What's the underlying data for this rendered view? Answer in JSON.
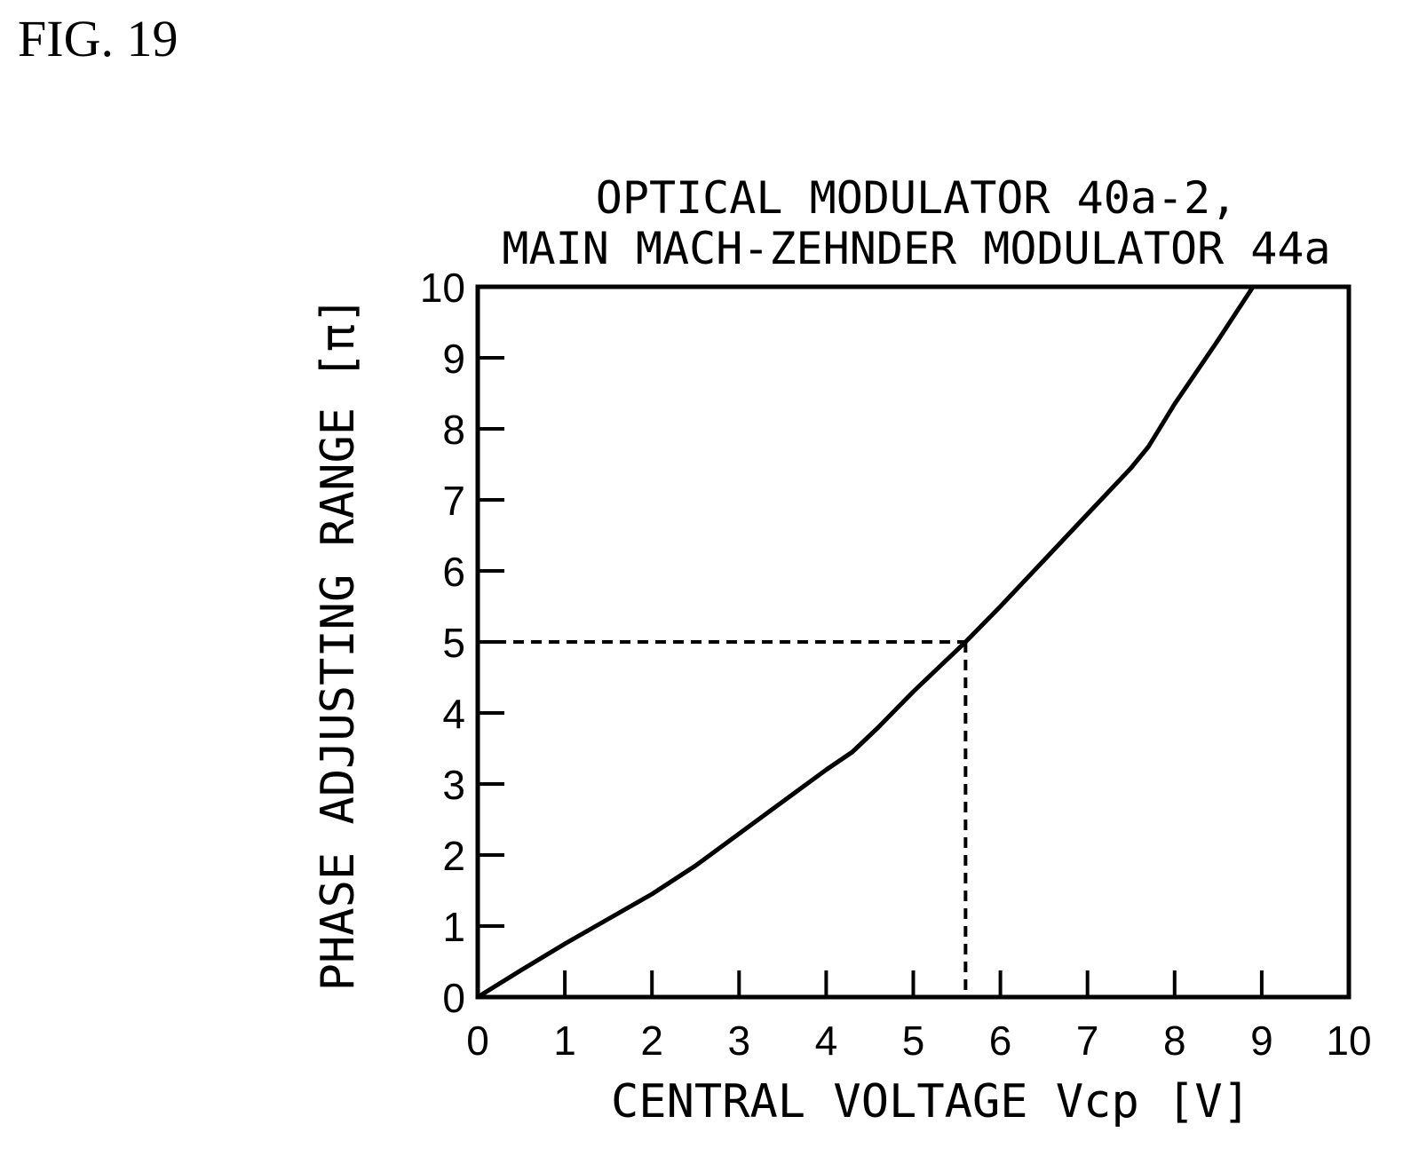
{
  "figure_label": "FIG. 19",
  "chart_data": {
    "type": "line",
    "title_lines": [
      "OPTICAL MODULATOR 40a-2,",
      "MAIN MACH-ZEHNDER MODULATOR 44a"
    ],
    "xlabel": "CENTRAL VOLTAGE Vcp [V]",
    "ylabel": "PHASE ADJUSTING RANGE [π]",
    "xlim": [
      0,
      10
    ],
    "ylim": [
      0,
      10
    ],
    "xticks": [
      0,
      1,
      2,
      3,
      4,
      5,
      6,
      7,
      8,
      9,
      10
    ],
    "yticks": [
      0,
      1,
      2,
      3,
      4,
      5,
      6,
      7,
      8,
      9,
      10
    ],
    "grid": false,
    "series": [
      {
        "x": [
          0,
          0.5,
          1.0,
          1.5,
          2.0,
          2.5,
          3.0,
          3.5,
          4.0,
          4.3,
          4.6,
          5.0,
          5.3,
          5.6,
          6.0,
          6.5,
          7.0,
          7.5,
          7.7,
          8.0,
          8.5,
          8.9
        ],
        "y": [
          0,
          0.38,
          0.75,
          1.1,
          1.45,
          1.85,
          2.3,
          2.75,
          3.2,
          3.45,
          3.8,
          4.3,
          4.65,
          5.0,
          5.5,
          6.15,
          6.8,
          7.45,
          7.75,
          8.35,
          9.25,
          10.0
        ]
      }
    ],
    "reference": {
      "x": 5.6,
      "y": 5
    }
  }
}
